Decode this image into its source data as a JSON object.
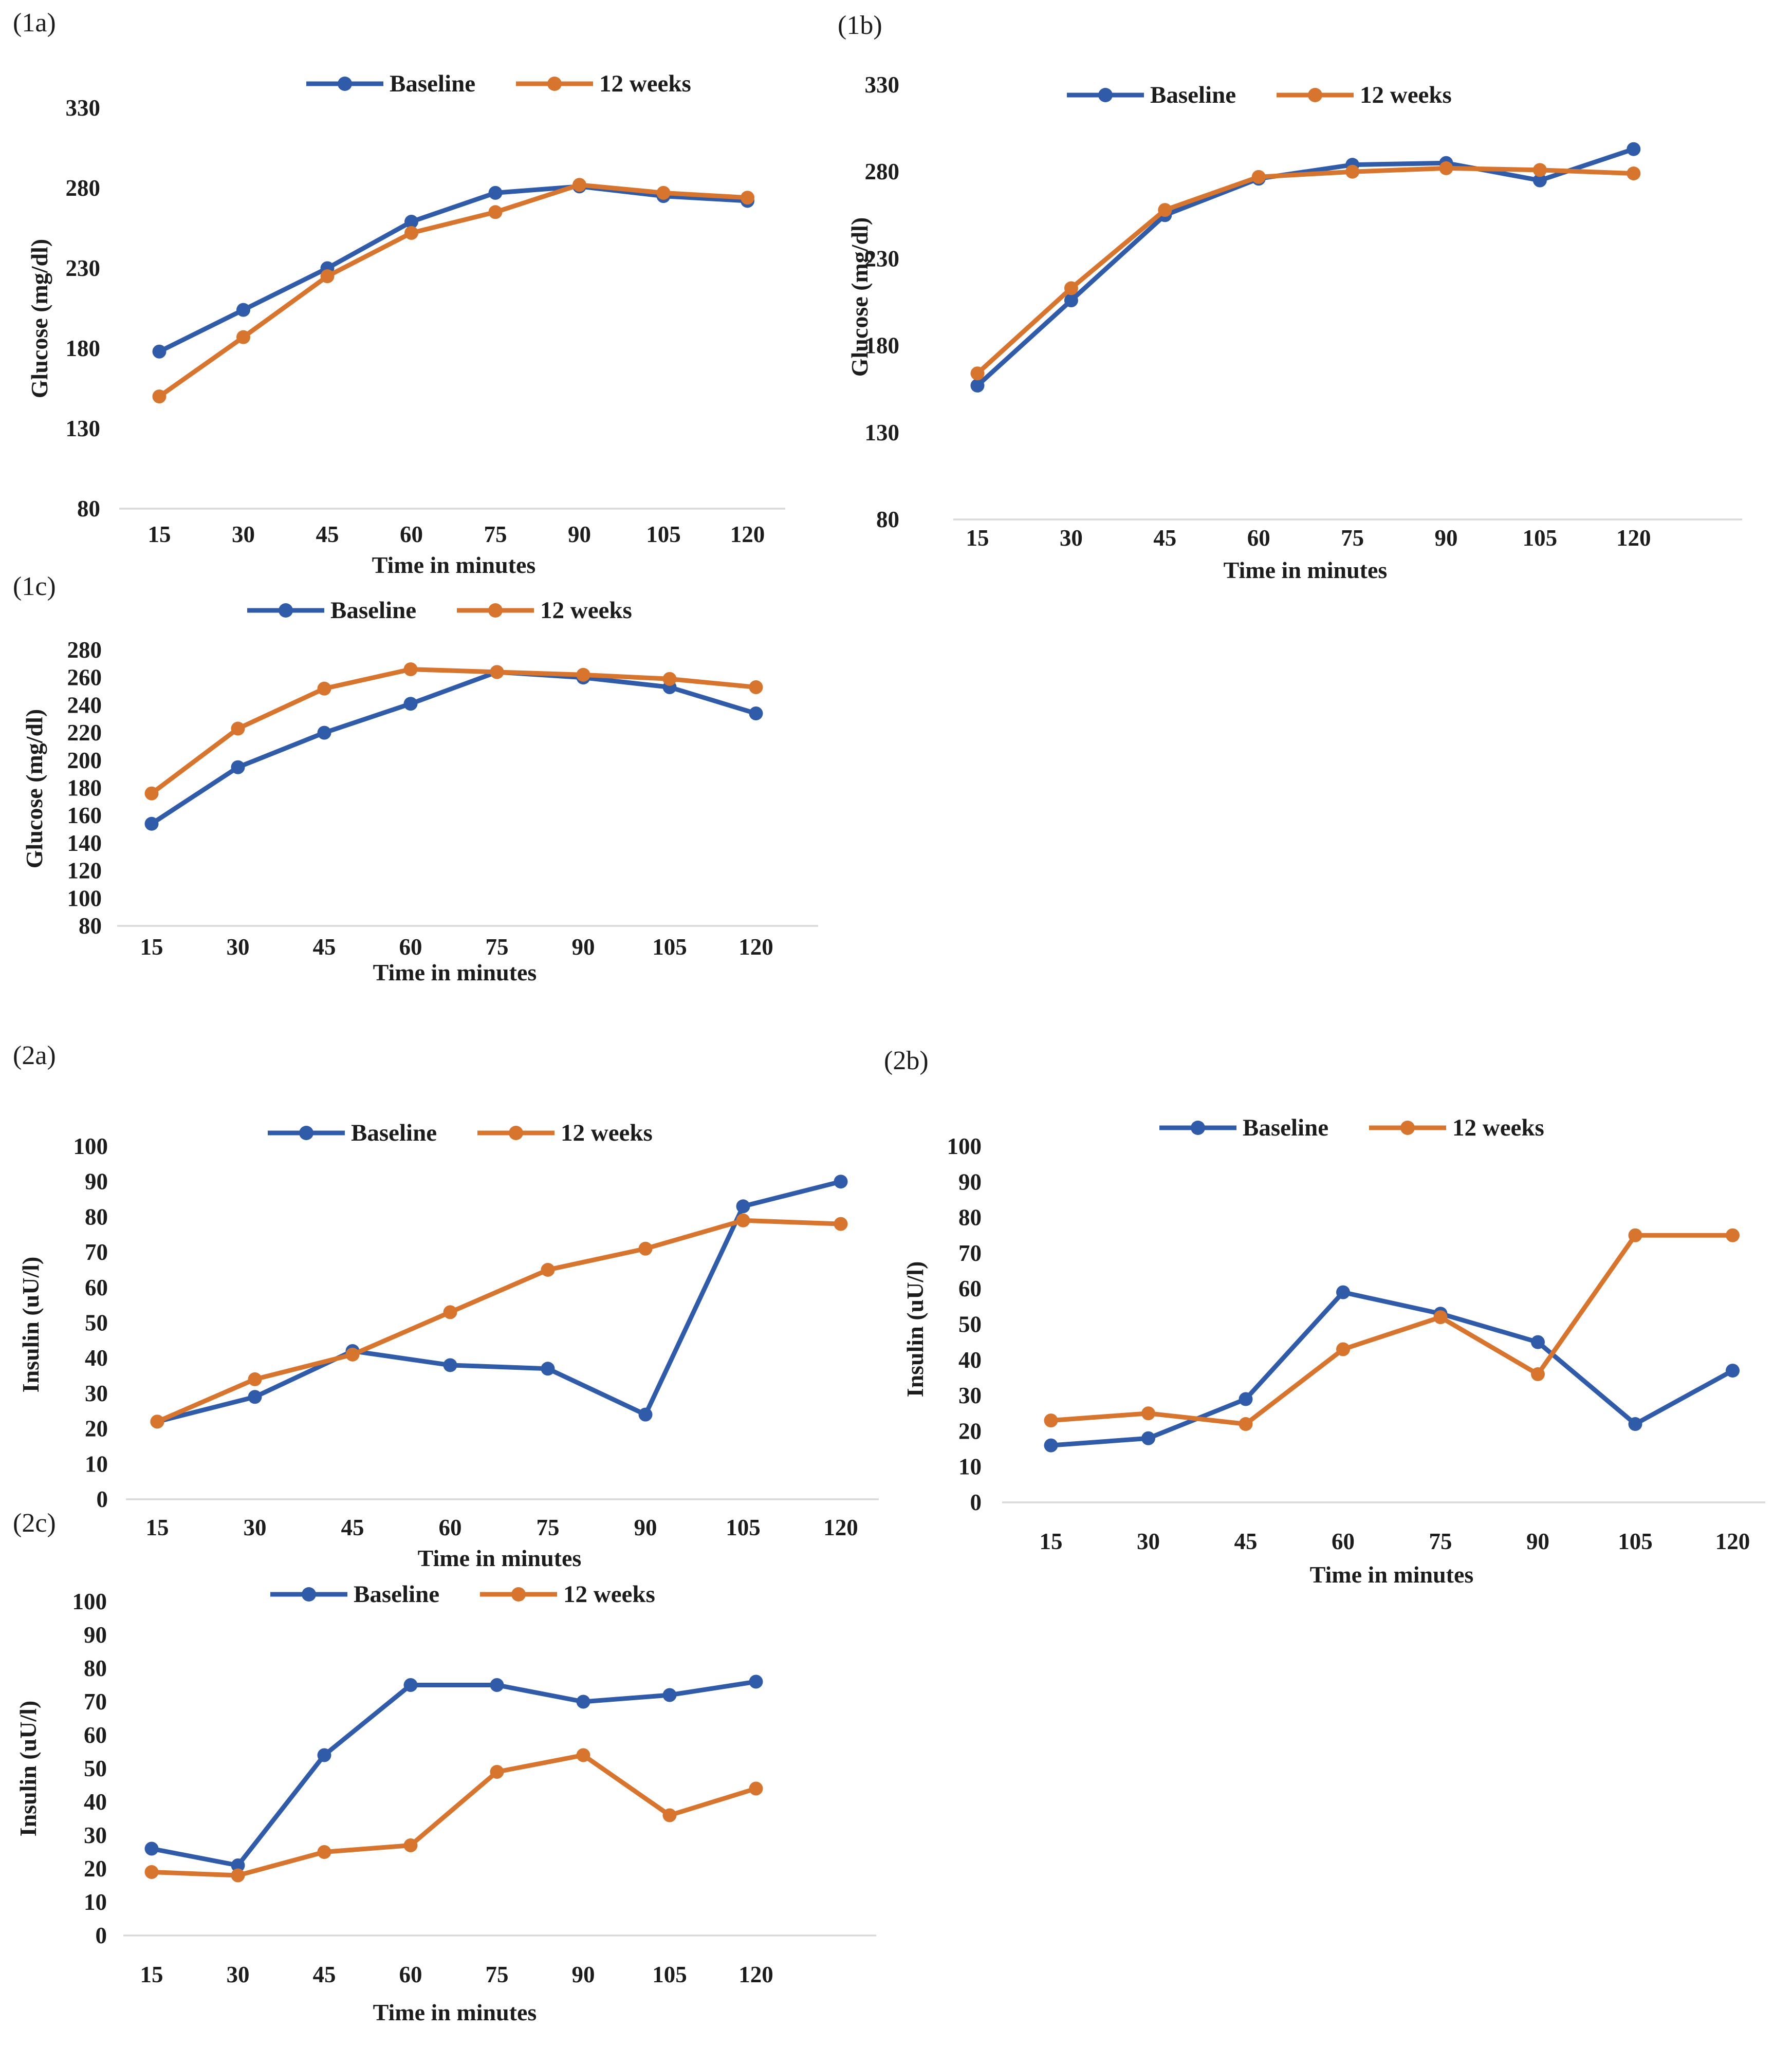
{
  "page": {
    "background": "#ffffff",
    "text_color": "#1c1c1c",
    "axis_line_color": "#d9d9d9",
    "series_blue": "#2F5BA8",
    "series_orange": "#D7752E"
  },
  "chart_data": [
    {
      "id": "1a",
      "tag": "(1a)",
      "type": "line",
      "title": "",
      "xlabel": "Time in minutes",
      "ylabel": "Glucose (mg/dl)",
      "categories": [
        "15",
        "30",
        "45",
        "60",
        "75",
        "90",
        "105",
        "120"
      ],
      "ylim": [
        80,
        330
      ],
      "yticks": [
        330,
        280,
        230,
        180,
        130,
        80
      ],
      "grid": false,
      "legend_position": "top-center",
      "series": [
        {
          "name": "Baseline",
          "color": "#2F5BA8",
          "values": [
            178,
            204,
            230,
            259,
            277,
            281,
            275,
            272
          ]
        },
        {
          "name": "12 weeks",
          "color": "#D7752E",
          "values": [
            150,
            187,
            225,
            252,
            265,
            282,
            277,
            274
          ]
        }
      ]
    },
    {
      "id": "1b",
      "tag": "(1b)",
      "type": "line",
      "title": "",
      "xlabel": "Time in minutes",
      "ylabel": "Glucose (mg/dl)",
      "categories": [
        "15",
        "30",
        "45",
        "60",
        "75",
        "90",
        "105",
        "120"
      ],
      "ylim": [
        80,
        330
      ],
      "yticks": [
        330,
        280,
        230,
        180,
        130,
        80
      ],
      "grid": false,
      "legend_position": "top-center",
      "series": [
        {
          "name": "Baseline",
          "color": "#2F5BA8",
          "values": [
            157,
            206,
            255,
            276,
            284,
            285,
            275,
            293
          ]
        },
        {
          "name": "12 weeks",
          "color": "#D7752E",
          "values": [
            164,
            213,
            258,
            277,
            280,
            282,
            281,
            279
          ]
        }
      ]
    },
    {
      "id": "1c",
      "tag": "(1c)",
      "type": "line",
      "title": "",
      "xlabel": "Time in minutes",
      "ylabel": "Glucose (mg/dl)",
      "categories": [
        "15",
        "30",
        "45",
        "60",
        "75",
        "90",
        "105",
        "120"
      ],
      "ylim": [
        80,
        280
      ],
      "yticks": [
        280,
        260,
        240,
        220,
        200,
        180,
        160,
        140,
        120,
        100,
        80
      ],
      "grid": false,
      "legend_position": "top-center",
      "series": [
        {
          "name": "Baseline",
          "color": "#2F5BA8",
          "values": [
            154,
            195,
            220,
            241,
            264,
            260,
            253,
            234
          ]
        },
        {
          "name": "12 weeks",
          "color": "#D7752E",
          "values": [
            176,
            223,
            252,
            266,
            264,
            262,
            259,
            253
          ]
        }
      ]
    },
    {
      "id": "2a",
      "tag": "(2a)",
      "type": "line",
      "title": "",
      "xlabel": "Time in minutes",
      "ylabel": "Insulin (uU/l)",
      "categories": [
        "15",
        "30",
        "45",
        "60",
        "75",
        "90",
        "105",
        "120"
      ],
      "ylim": [
        0,
        100
      ],
      "yticks": [
        100,
        90,
        80,
        70,
        60,
        50,
        40,
        30,
        20,
        10,
        0
      ],
      "grid": false,
      "legend_position": "top-center",
      "series": [
        {
          "name": "Baseline",
          "color": "#2F5BA8",
          "values": [
            22,
            29,
            42,
            38,
            37,
            24,
            83,
            90
          ]
        },
        {
          "name": "12 weeks",
          "color": "#D7752E",
          "values": [
            22,
            34,
            41,
            53,
            65,
            71,
            79,
            78
          ]
        }
      ]
    },
    {
      "id": "2b",
      "tag": "(2b)",
      "type": "line",
      "title": "",
      "xlabel": "Time in minutes",
      "ylabel": "Insulin (uU/l)",
      "categories": [
        "15",
        "30",
        "45",
        "60",
        "75",
        "90",
        "105",
        "120"
      ],
      "ylim": [
        0,
        100
      ],
      "yticks": [
        100,
        90,
        80,
        70,
        60,
        50,
        40,
        30,
        20,
        10,
        0
      ],
      "grid": false,
      "legend_position": "top-center",
      "series": [
        {
          "name": "Baseline",
          "color": "#2F5BA8",
          "values": [
            16,
            18,
            29,
            59,
            53,
            45,
            22,
            37
          ]
        },
        {
          "name": "12 weeks",
          "color": "#D7752E",
          "values": [
            23,
            25,
            22,
            43,
            52,
            36,
            75,
            75
          ]
        }
      ]
    },
    {
      "id": "2c",
      "tag": "(2c)",
      "type": "line",
      "title": "",
      "xlabel": "Time in minutes",
      "ylabel": "Insulin (uU/l)",
      "categories": [
        "15",
        "30",
        "45",
        "60",
        "75",
        "90",
        "105",
        "120"
      ],
      "ylim": [
        0,
        100
      ],
      "yticks": [
        100,
        90,
        80,
        70,
        60,
        50,
        40,
        30,
        20,
        10,
        0
      ],
      "grid": false,
      "legend_position": "top-center",
      "series": [
        {
          "name": "Baseline",
          "color": "#2F5BA8",
          "values": [
            26,
            21,
            54,
            75,
            75,
            70,
            72,
            76
          ]
        },
        {
          "name": "12 weeks",
          "color": "#D7752E",
          "values": [
            19,
            18,
            25,
            27,
            49,
            54,
            36,
            44
          ]
        }
      ]
    }
  ]
}
